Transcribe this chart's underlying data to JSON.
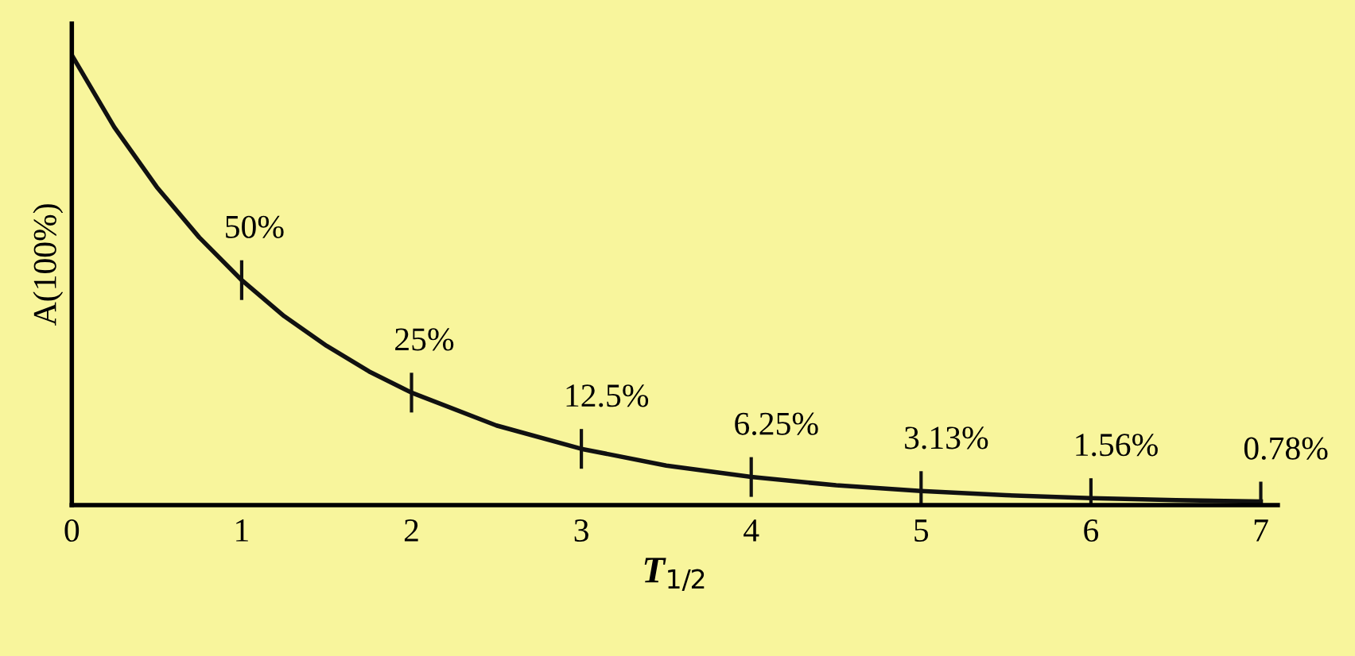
{
  "chart_data": {
    "type": "line",
    "xlabel": "T$_{1/2}$",
    "ylabel": "A(100%)",
    "x": [
      0,
      0.25,
      0.5,
      0.75,
      1,
      1.25,
      1.5,
      1.75,
      2,
      2.5,
      3,
      3.5,
      4,
      4.5,
      5,
      5.5,
      6,
      6.5,
      7
    ],
    "values": [
      100,
      84,
      70.7,
      59.5,
      50,
      42,
      35.4,
      29.7,
      25,
      17.7,
      12.5,
      8.8,
      6.25,
      4.4,
      3.13,
      2.2,
      1.56,
      1.1,
      0.78
    ],
    "value_labels": [
      null,
      null,
      null,
      null,
      "50%",
      null,
      null,
      null,
      "25%",
      null,
      "12.5%",
      null,
      "6.25%",
      null,
      "3.13%",
      null,
      "1.56%",
      null,
      "0.78%"
    ],
    "color": "#111111",
    "xlim": [
      0,
      7.1
    ],
    "xticks": [
      0,
      1,
      2,
      3,
      4,
      5,
      6,
      7
    ],
    "ylim": [
      0,
      107
    ],
    "tick_labels": "x",
    "grid": false,
    "legend": false
  }
}
